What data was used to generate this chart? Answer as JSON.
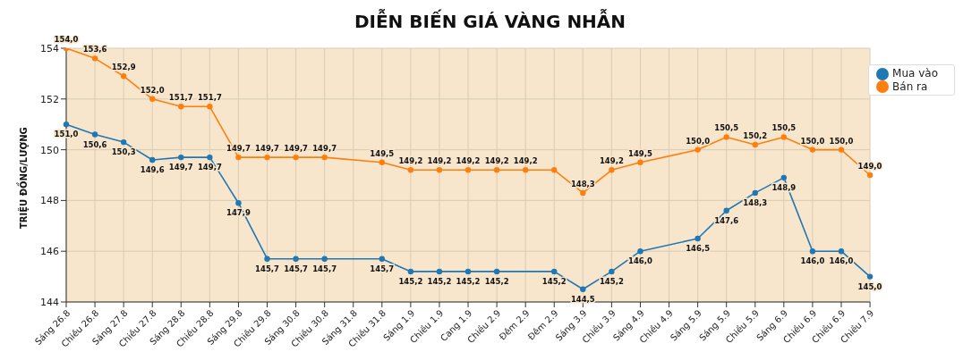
{
  "chart_data": {
    "type": "line",
    "title": "DIỄN BIẾN GIÁ VÀNG NHẪN",
    "ylabel": "TRIỆU ĐỒNG/LƯỢNG",
    "categories": [
      "Sáng 26.8",
      "Chiều 26.8",
      "Sáng 27.8",
      "Chiều 27.8",
      "Sáng 28.8",
      "Chiều 28.8",
      "Sáng 29.8",
      "Chiều 29.8",
      "Sáng 30.8",
      "Chiều 30.8",
      "Sáng 31.8",
      "Chiều 31.8",
      "Sáng 1.9",
      "Chiều 1.9",
      "Cang 1.9",
      "Chiều 2.9",
      "Đêm 2.9",
      "Đêm 2.9",
      "Sáng 3.9",
      "Chiều 3.9",
      "Sáng 4.9",
      "Chiều 4.9",
      "Sáng 5.9",
      "Sáng 5.9",
      "Chiều 5.9",
      "Sáng 6.9",
      "Chiều 6.9",
      "Chiều 6.9",
      "Chiều 7.9"
    ],
    "series": [
      {
        "name": "Mua vào",
        "color": "#1f77b4",
        "values": [
          151.0,
          150.6,
          150.3,
          149.6,
          149.7,
          149.7,
          147.9,
          145.7,
          145.7,
          145.7,
          null,
          145.7,
          145.2,
          145.2,
          145.2,
          145.2,
          null,
          145.2,
          144.5,
          145.2,
          146.0,
          null,
          146.5,
          147.6,
          148.3,
          148.9,
          146.0,
          146.0,
          145.0
        ],
        "value_labels": [
          "151,0",
          "150,6",
          "150,3",
          "149,6",
          "149,7",
          "149,7",
          "147,9",
          "145,7",
          "145,7",
          "145,7",
          null,
          "145,7",
          "145,2",
          "145,2",
          "145,2",
          "145,2",
          null,
          "145,2",
          "144,5",
          "145,2",
          "146,0",
          null,
          "146,5",
          "147,6",
          "148,3",
          "148,9",
          "146,0",
          "146,0",
          "145,0"
        ]
      },
      {
        "name": "Bán ra",
        "color": "#ff7f0e",
        "values": [
          154.0,
          153.6,
          152.9,
          152.0,
          151.7,
          151.7,
          149.7,
          149.7,
          149.7,
          149.7,
          null,
          149.5,
          149.2,
          149.2,
          149.2,
          149.2,
          149.2,
          149.2,
          148.3,
          149.2,
          149.5,
          null,
          150.0,
          150.5,
          150.2,
          150.5,
          150.0,
          150.0,
          149.0
        ],
        "value_labels": [
          "154,0",
          "153,6",
          "152,9",
          "152,0",
          "151,7",
          "151,7",
          "149,7",
          "149,7",
          "149,7",
          "149,7",
          null,
          "149,5",
          "149,2",
          "149,2",
          "149,2",
          "149,2",
          "149,2",
          null,
          "148,3",
          "149,2",
          "149,5",
          null,
          "150,0",
          "150,5",
          "150,2",
          "150,5",
          "150,0",
          "150,0",
          "149,0"
        ]
      }
    ],
    "ylim": [
      144,
      154
    ],
    "yticks": [
      144,
      146,
      148,
      150,
      152,
      154
    ],
    "grid": true,
    "legend": "top right",
    "marker": "circle"
  }
}
